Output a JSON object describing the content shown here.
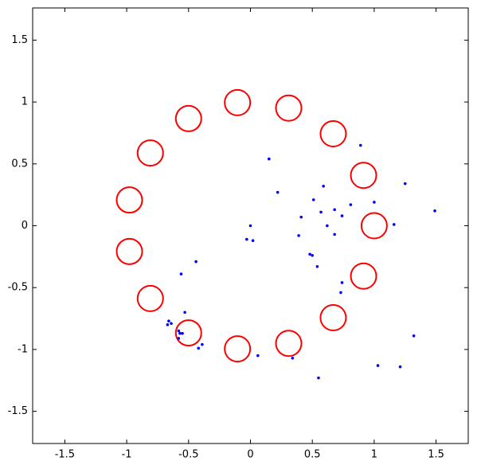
{
  "chart_data": {
    "type": "scatter",
    "xlim": [
      -1.76,
      1.76
    ],
    "ylim": [
      -1.76,
      1.76
    ],
    "xticks": [
      -1.5,
      -1,
      -0.5,
      0,
      0.5,
      1,
      1.5
    ],
    "yticks": [
      -1.5,
      -1,
      -0.5,
      0,
      0.5,
      1,
      1.5
    ],
    "grid": false,
    "series": [
      {
        "color": "#ff0000",
        "marker": "ring",
        "x": [
          1.0,
          0.914,
          0.669,
          0.309,
          -0.105,
          -0.5,
          -0.809,
          -0.978,
          -0.978,
          -0.809,
          -0.5,
          -0.105,
          0.309,
          0.669,
          0.914
        ],
        "values": [
          0.0,
          0.407,
          0.743,
          0.951,
          0.995,
          0.866,
          0.588,
          0.208,
          -0.208,
          -0.588,
          -0.866,
          -0.995,
          -0.951,
          -0.743,
          -0.407
        ]
      },
      {
        "color": "#0000ff",
        "marker": "dot",
        "x": [
          0.89,
          0.15,
          1.25,
          0.59,
          0.22,
          0.51,
          1.0,
          0.81,
          0.68,
          0.57,
          1.49,
          0.74,
          0.41,
          1.16,
          0.62,
          0.0,
          0.68,
          0.39,
          -0.03,
          0.02,
          0.48,
          0.5,
          0.54,
          -0.44,
          -0.56,
          0.74,
          0.73,
          -0.53,
          -0.66,
          -0.64,
          -0.67,
          -0.58,
          -0.57,
          -0.55,
          -0.58,
          1.32,
          -0.39,
          -0.42,
          0.06,
          0.34,
          1.03,
          1.21,
          0.55
        ],
        "values": [
          0.65,
          0.54,
          0.34,
          0.32,
          0.27,
          0.21,
          0.19,
          0.17,
          0.13,
          0.11,
          0.12,
          0.08,
          0.07,
          0.01,
          0.0,
          0.0,
          -0.07,
          -0.08,
          -0.11,
          -0.12,
          -0.23,
          -0.24,
          -0.33,
          -0.29,
          -0.39,
          -0.46,
          -0.54,
          -0.7,
          -0.77,
          -0.79,
          -0.8,
          -0.85,
          -0.87,
          -0.87,
          -0.91,
          -0.89,
          -0.96,
          -0.99,
          -1.05,
          -1.07,
          -1.13,
          -1.14,
          -1.23
        ]
      }
    ]
  }
}
